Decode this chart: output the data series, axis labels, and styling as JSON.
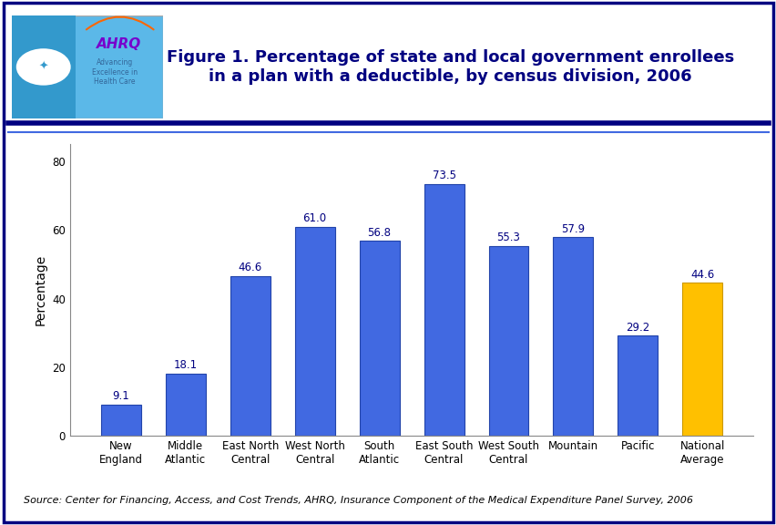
{
  "categories": [
    "New\nEngland",
    "Middle\nAtlantic",
    "East North\nCentral",
    "West North\nCentral",
    "South\nAtlantic",
    "East South\nCentral",
    "West South\nCentral",
    "Mountain",
    "Pacific",
    "National\nAverage"
  ],
  "values": [
    9.1,
    18.1,
    46.6,
    61.0,
    56.8,
    73.5,
    55.3,
    57.9,
    29.2,
    44.6
  ],
  "bar_colors": [
    "#4169E1",
    "#4169E1",
    "#4169E1",
    "#4169E1",
    "#4169E1",
    "#4169E1",
    "#4169E1",
    "#4169E1",
    "#4169E1",
    "#FFC000"
  ],
  "bar_edge_colors": [
    "#2244AA",
    "#2244AA",
    "#2244AA",
    "#2244AA",
    "#2244AA",
    "#2244AA",
    "#2244AA",
    "#2244AA",
    "#2244AA",
    "#CC9900"
  ],
  "title_line1": "Figure 1. Percentage of state and local government enrollees",
  "title_line2": "in a plan with a deductible, by census division, 2006",
  "ylabel": "Percentage",
  "ylim": [
    0,
    85
  ],
  "yticks": [
    0,
    20,
    40,
    60,
    80
  ],
  "source_text": "Source: Center for Financing, Access, and Cost Trends, AHRQ, Insurance Component of the Medical Expenditure Panel Survey, 2006",
  "title_color": "#000080",
  "value_color": "#000080",
  "title_fontsize": 13,
  "label_fontsize": 8.5,
  "value_fontsize": 8.5,
  "ylabel_fontsize": 10,
  "source_fontsize": 8,
  "background_color": "#ffffff",
  "outer_border_color": "#000080",
  "separator_dark": "#000080",
  "separator_light": "#4169E1",
  "logo_box_color": "#4aa8d8",
  "logo_left_color": "#3399cc"
}
